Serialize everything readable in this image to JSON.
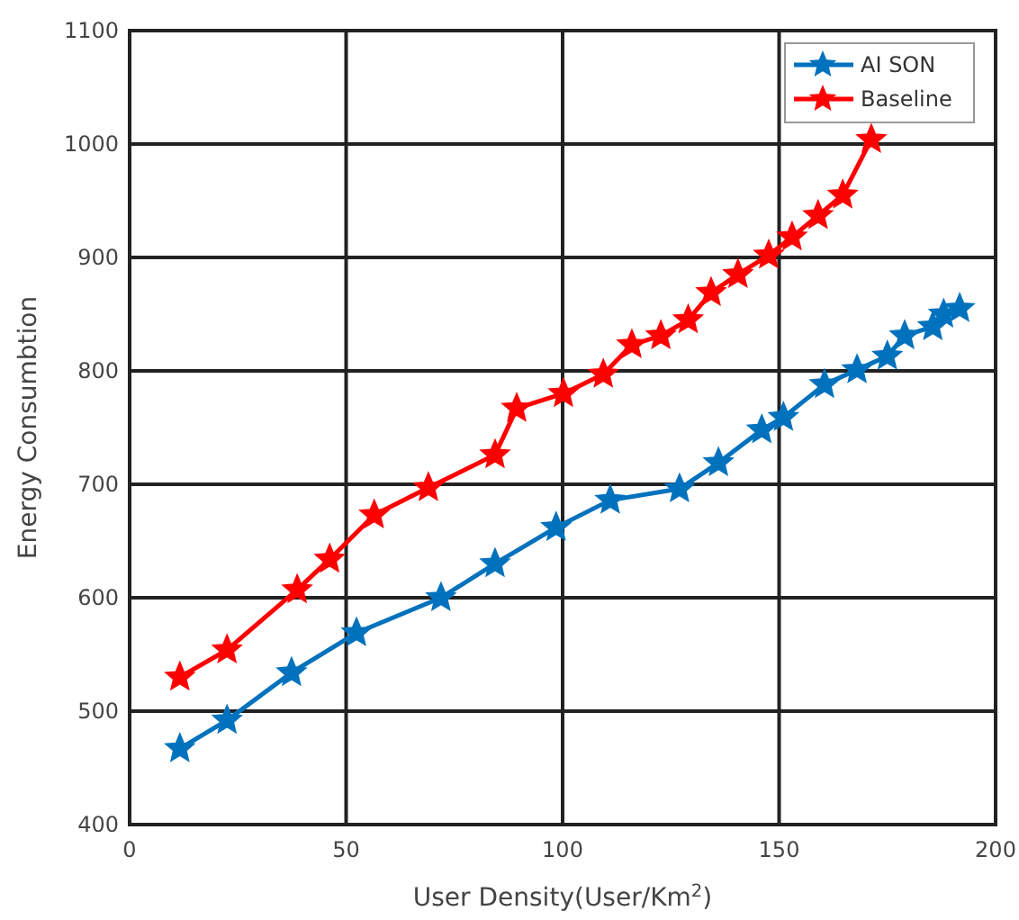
{
  "chart_data": {
    "type": "line",
    "xlabel": "User Density(User/Km$^{2}$)",
    "ylabel": "Energy Consumbtion",
    "xlim": [
      0,
      200
    ],
    "xticks": [
      0,
      50,
      100,
      150,
      200
    ],
    "ylim": [
      400,
      1100
    ],
    "yticks": [
      400,
      500,
      600,
      700,
      800,
      900,
      1000,
      1100
    ],
    "grid": true,
    "legend": "top right",
    "marker": "star",
    "line_style": "solid",
    "series": [
      {
        "name": "AI SON",
        "color": "#0072bd",
        "x": [
          11.6,
          22.5,
          37.4,
          52.4,
          71.9,
          84.4,
          98.5,
          111,
          127,
          136,
          146,
          151,
          160.5,
          168,
          175,
          179,
          185.5,
          188,
          191.7
        ],
        "values": [
          467,
          492,
          534,
          569,
          600,
          630,
          662,
          686,
          696,
          719,
          748,
          759,
          788,
          801,
          813,
          831,
          839,
          850,
          855
        ]
      },
      {
        "name": "Baseline",
        "color": "#ff0000",
        "x": [
          11.6,
          22.5,
          38.7,
          46.2,
          56.5,
          69,
          84.4,
          89.4,
          100.2,
          109.4,
          116,
          122.7,
          129,
          134.3,
          140.5,
          147.6,
          153,
          159,
          164.7,
          171.3
        ],
        "values": [
          530,
          554,
          607,
          634,
          673,
          697,
          726,
          767,
          780,
          797,
          823,
          831,
          845,
          869,
          885,
          902,
          918,
          937,
          955,
          1004
        ]
      }
    ]
  }
}
